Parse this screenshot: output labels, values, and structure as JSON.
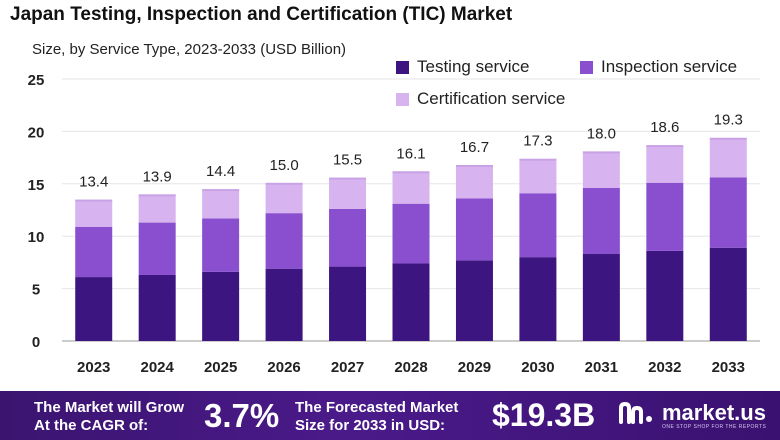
{
  "title": "Japan Testing, Inspection and Certification (TIC) Market",
  "subtitle": "Size, by Service Type, 2023-2033 (USD Billion)",
  "colors": {
    "testing": "#3d1580",
    "inspection": "#8a4fcf",
    "certification": "#d7b3f0",
    "footer": "#3f1578"
  },
  "chart_data": {
    "type": "bar",
    "stacked": true,
    "categories": [
      "2023",
      "2024",
      "2025",
      "2026",
      "2027",
      "2028",
      "2029",
      "2030",
      "2031",
      "2032",
      "2033"
    ],
    "series": [
      {
        "name": "Testing service",
        "values": [
          6.1,
          6.3,
          6.6,
          6.9,
          7.1,
          7.4,
          7.7,
          8.0,
          8.3,
          8.6,
          8.9
        ]
      },
      {
        "name": "Inspection service",
        "values": [
          4.8,
          5.0,
          5.1,
          5.3,
          5.5,
          5.7,
          5.9,
          6.1,
          6.3,
          6.5,
          6.7
        ]
      },
      {
        "name": "Certification service",
        "values": [
          2.5,
          2.6,
          2.7,
          2.8,
          2.9,
          3.0,
          3.1,
          3.2,
          3.4,
          3.5,
          3.7
        ]
      }
    ],
    "totals": [
      "13.4",
      "13.9",
      "14.4",
      "15.0",
      "15.5",
      "16.1",
      "16.7",
      "17.3",
      "18.0",
      "18.6",
      "19.3"
    ],
    "yticks": [
      "0",
      "5",
      "10",
      "15",
      "20",
      "25"
    ],
    "ylim": [
      0,
      25
    ],
    "grid": true,
    "legend_position": "top-right"
  },
  "footer": {
    "cagr_line1": "The Market will Grow",
    "cagr_line2": "At the CAGR of:",
    "cagr_value": "3.7%",
    "forecast_line1": "The Forecasted Market",
    "forecast_line2": "Size for 2033 in USD:",
    "forecast_value": "$19.3B",
    "logo_text": "market.us",
    "logo_tagline": "ONE STOP SHOP FOR THE REPORTS",
    "logo_icon": "market-us-logo-icon"
  }
}
